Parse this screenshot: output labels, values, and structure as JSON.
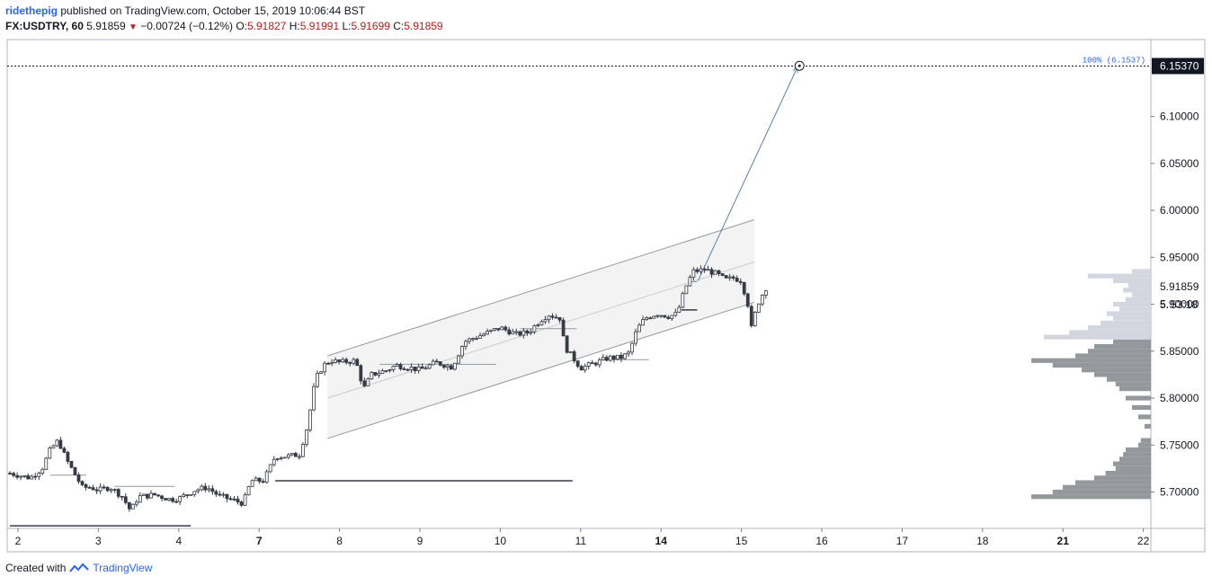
{
  "header": {
    "user": "ridethepig",
    "published": "published on TradingView.com, October 15, 2019 10:06:44 BST",
    "symbol": "FX:USDTRY, 60",
    "last": "5.91859",
    "change": "−0.00724 (−0.12%)",
    "o_label": "O:",
    "o": "5.91827",
    "h_label": "H:",
    "h": "5.91991",
    "l_label": "L:",
    "l": "5.91699",
    "c_label": "C:",
    "c": "5.91859"
  },
  "footer": {
    "created": "Created with",
    "brand": "TradingView"
  },
  "colors": {
    "accent": "#2962ff",
    "down": "#b71c1c",
    "candle": "#363a45",
    "channel": "#f3f3f3",
    "volume": "#8e9196",
    "volume_light": "#d1d4dc"
  },
  "chart_data": {
    "type": "candlestick",
    "symbol": "FX:USDTRY",
    "interval": "60",
    "y_range": [
      5.66,
      6.17
    ],
    "y_ticks": [
      "5.70000",
      "5.75000",
      "5.80000",
      "5.85000",
      "5.90000",
      "5.95000",
      "6.00000",
      "6.05000",
      "6.10000"
    ],
    "x_ticks": [
      {
        "label": "2",
        "day": 2,
        "bold": false
      },
      {
        "label": "3",
        "day": 3,
        "bold": false
      },
      {
        "label": "4",
        "day": 4,
        "bold": false
      },
      {
        "label": "7",
        "day": 5,
        "bold": true
      },
      {
        "label": "8",
        "day": 6,
        "bold": false
      },
      {
        "label": "9",
        "day": 7,
        "bold": false
      },
      {
        "label": "10",
        "day": 8,
        "bold": false
      },
      {
        "label": "11",
        "day": 9,
        "bold": false
      },
      {
        "label": "14",
        "day": 10,
        "bold": true
      },
      {
        "label": "15",
        "day": 11,
        "bold": false
      },
      {
        "label": "16",
        "day": 12,
        "bold": false
      },
      {
        "label": "17",
        "day": 13,
        "bold": false
      },
      {
        "label": "18",
        "day": 14,
        "bold": false
      },
      {
        "label": "21",
        "day": 15,
        "bold": true
      },
      {
        "label": "22",
        "day": 16,
        "bold": false
      }
    ],
    "x_range": [
      1.9,
      16.0
    ],
    "last_price": {
      "value": 5.91859,
      "label": "5.91859",
      "countdown": "53:18"
    },
    "target": {
      "value": 6.1537,
      "label": "6.15370",
      "fib_label": "100% (6.1537)"
    },
    "channel": {
      "start_day": 5.85,
      "end_day": 11.16,
      "upper": [
        5.845,
        5.99
      ],
      "mid": [
        5.8,
        5.945
      ],
      "lower": [
        5.757,
        5.902
      ]
    },
    "arrow": {
      "from": [
        10.46,
        5.925
      ],
      "to": [
        11.7,
        6.153
      ]
    },
    "levels": [
      {
        "day_from": 1.9,
        "day_to": 4.15,
        "value": 5.664
      },
      {
        "day_from": 5.2,
        "day_to": 8.9,
        "value": 5.712
      },
      {
        "day_from": 10.25,
        "day_to": 10.45,
        "value": 5.894
      }
    ],
    "daily_poc": [
      {
        "day_from": 2.4,
        "day_to": 2.85,
        "value": 5.718
      },
      {
        "day_from": 3.2,
        "day_to": 3.95,
        "value": 5.706
      },
      {
        "day_from": 6.5,
        "day_to": 7.95,
        "value": 5.836
      },
      {
        "day_from": 8.25,
        "day_to": 8.95,
        "value": 5.874
      },
      {
        "day_from": 9.25,
        "day_to": 9.85,
        "value": 5.841
      },
      {
        "day_from": 10.35,
        "day_to": 10.45,
        "value": 5.924
      }
    ],
    "path": [
      [
        1.9,
        5.72
      ],
      [
        2.15,
        5.715
      ],
      [
        2.3,
        5.725
      ],
      [
        2.4,
        5.745
      ],
      [
        2.5,
        5.755
      ],
      [
        2.6,
        5.735
      ],
      [
        2.7,
        5.72
      ],
      [
        2.8,
        5.705
      ],
      [
        2.9,
        5.705
      ],
      [
        3.0,
        5.702
      ],
      [
        3.15,
        5.705
      ],
      [
        3.3,
        5.695
      ],
      [
        3.4,
        5.68
      ],
      [
        3.5,
        5.695
      ],
      [
        3.7,
        5.697
      ],
      [
        3.9,
        5.692
      ],
      [
        4.0,
        5.693
      ],
      [
        4.2,
        5.702
      ],
      [
        4.35,
        5.705
      ],
      [
        4.5,
        5.696
      ],
      [
        4.8,
        5.688
      ],
      [
        4.9,
        5.712
      ],
      [
        5.05,
        5.712
      ],
      [
        5.1,
        5.72
      ],
      [
        5.2,
        5.738
      ],
      [
        5.35,
        5.738
      ],
      [
        5.5,
        5.74
      ],
      [
        5.6,
        5.77
      ],
      [
        5.7,
        5.82
      ],
      [
        5.8,
        5.835
      ],
      [
        5.9,
        5.84
      ],
      [
        6.0,
        5.838
      ],
      [
        6.2,
        5.84
      ],
      [
        6.3,
        5.81
      ],
      [
        6.4,
        5.825
      ],
      [
        6.6,
        5.83
      ],
      [
        6.7,
        5.835
      ],
      [
        6.9,
        5.832
      ],
      [
        7.0,
        5.83
      ],
      [
        7.2,
        5.838
      ],
      [
        7.4,
        5.833
      ],
      [
        7.55,
        5.86
      ],
      [
        7.7,
        5.865
      ],
      [
        7.85,
        5.87
      ],
      [
        8.0,
        5.875
      ],
      [
        8.2,
        5.868
      ],
      [
        8.35,
        5.87
      ],
      [
        8.5,
        5.883
      ],
      [
        8.6,
        5.889
      ],
      [
        8.75,
        5.885
      ],
      [
        8.8,
        5.855
      ],
      [
        9.0,
        5.832
      ],
      [
        9.2,
        5.838
      ],
      [
        9.35,
        5.843
      ],
      [
        9.5,
        5.843
      ],
      [
        9.6,
        5.848
      ],
      [
        9.7,
        5.873
      ],
      [
        9.8,
        5.885
      ],
      [
        9.95,
        5.89
      ],
      [
        10.1,
        5.887
      ],
      [
        10.2,
        5.89
      ],
      [
        10.3,
        5.917
      ],
      [
        10.4,
        5.935
      ],
      [
        10.55,
        5.937
      ],
      [
        10.7,
        5.932
      ],
      [
        10.8,
        5.926
      ],
      [
        10.9,
        5.928
      ],
      [
        11.0,
        5.925
      ],
      [
        11.08,
        5.9
      ],
      [
        11.12,
        5.873
      ],
      [
        11.2,
        5.9
      ],
      [
        11.3,
        5.917
      ],
      [
        11.34,
        5.919
      ]
    ],
    "volume_profile": [
      {
        "price": 5.695,
        "len": 0.95
      },
      {
        "price": 5.7,
        "len": 0.78
      },
      {
        "price": 5.705,
        "len": 0.7
      },
      {
        "price": 5.71,
        "len": 0.6
      },
      {
        "price": 5.715,
        "len": 0.45
      },
      {
        "price": 5.72,
        "len": 0.36
      },
      {
        "price": 5.725,
        "len": 0.28
      },
      {
        "price": 5.73,
        "len": 0.3
      },
      {
        "price": 5.735,
        "len": 0.25
      },
      {
        "price": 5.74,
        "len": 0.22
      },
      {
        "price": 5.745,
        "len": 0.2
      },
      {
        "price": 5.75,
        "len": 0.1
      },
      {
        "price": 5.755,
        "len": 0.08
      },
      {
        "price": 5.77,
        "len": 0.05
      },
      {
        "price": 5.78,
        "len": 0.1
      },
      {
        "price": 5.79,
        "len": 0.15
      },
      {
        "price": 5.8,
        "len": 0.2
      },
      {
        "price": 5.81,
        "len": 0.25
      },
      {
        "price": 5.815,
        "len": 0.28
      },
      {
        "price": 5.82,
        "len": 0.35
      },
      {
        "price": 5.825,
        "len": 0.45
      },
      {
        "price": 5.83,
        "len": 0.55
      },
      {
        "price": 5.835,
        "len": 0.78
      },
      {
        "price": 5.84,
        "len": 0.95
      },
      {
        "price": 5.845,
        "len": 0.6
      },
      {
        "price": 5.85,
        "len": 0.5
      },
      {
        "price": 5.855,
        "len": 0.45
      },
      {
        "price": 5.86,
        "len": 0.3
      },
      {
        "price": 5.865,
        "len": 0.85
      },
      {
        "price": 5.87,
        "len": 0.65
      },
      {
        "price": 5.875,
        "len": 0.5
      },
      {
        "price": 5.88,
        "len": 0.4
      },
      {
        "price": 5.885,
        "len": 0.3
      },
      {
        "price": 5.89,
        "len": 0.35
      },
      {
        "price": 5.895,
        "len": 0.25
      },
      {
        "price": 5.9,
        "len": 0.3
      },
      {
        "price": 5.905,
        "len": 0.2
      },
      {
        "price": 5.91,
        "len": 0.15
      },
      {
        "price": 5.915,
        "len": 0.22
      },
      {
        "price": 5.92,
        "len": 0.18
      },
      {
        "price": 5.925,
        "len": 0.3
      },
      {
        "price": 5.93,
        "len": 0.5
      },
      {
        "price": 5.935,
        "len": 0.15
      }
    ]
  }
}
